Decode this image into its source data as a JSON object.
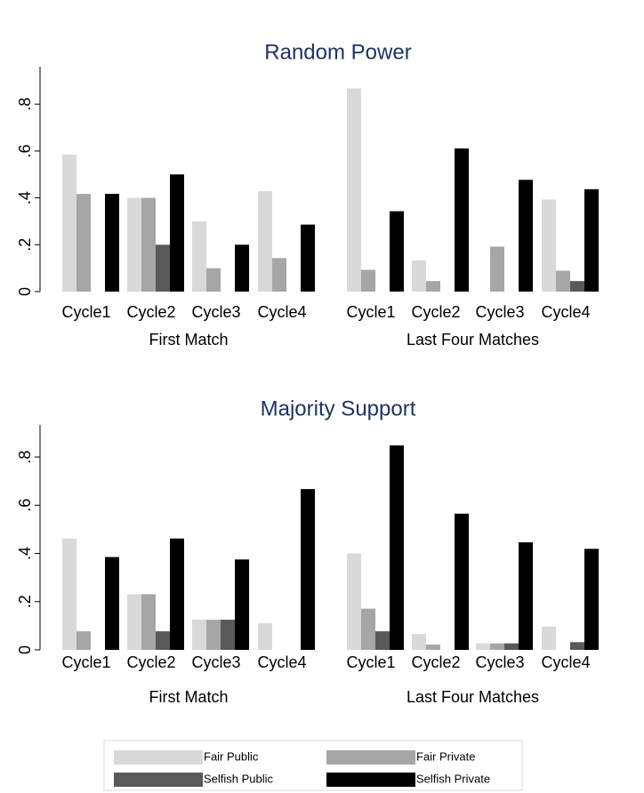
{
  "chart_data": [
    {
      "type": "bar",
      "title": "Random Power",
      "categories": [
        "Cycle1",
        "Cycle2",
        "Cycle3",
        "Cycle4",
        "Cycle1",
        "Cycle2",
        "Cycle3",
        "Cycle4"
      ],
      "groups": [
        "First Match",
        "Last Four Matches"
      ],
      "series": [
        {
          "name": "Fair Public",
          "color": "#d9d9d9",
          "values": [
            0.585,
            0.4,
            0.3,
            0.429,
            0.867,
            0.133,
            0,
            0.393
          ]
        },
        {
          "name": "Fair Private",
          "color": "#a6a6a6",
          "values": [
            0.417,
            0.4,
            0.1,
            0.143,
            0.093,
            0.045,
            0.192,
            0.089
          ]
        },
        {
          "name": "Selfish Public",
          "color": "#595959",
          "values": [
            0,
            0.2,
            0,
            0,
            0,
            0,
            0,
            0.045
          ]
        },
        {
          "name": "Selfish Private",
          "color": "#000000",
          "values": [
            0.417,
            0.5,
            0.2,
            0.286,
            0.343,
            0.611,
            0.477,
            0.437
          ]
        }
      ],
      "ylim": [
        0,
        0.96
      ],
      "yticks": [
        0,
        {
          "value": 0.2,
          "label": ".2"
        },
        {
          "value": 0.4,
          "label": ".4"
        },
        {
          "value": 0.6,
          "label": ".6"
        },
        {
          "value": 0.8,
          "label": ".8"
        }
      ],
      "grid": false
    },
    {
      "type": "bar",
      "title": "Majority Support",
      "categories": [
        "Cycle1",
        "Cycle2",
        "Cycle3",
        "Cycle4",
        "Cycle1",
        "Cycle2",
        "Cycle3",
        "Cycle4"
      ],
      "groups": [
        "First Match",
        "Last Four Matches"
      ],
      "series": [
        {
          "color": "#d9d9d9",
          "values": [
            0.462,
            0.231,
            0.125,
            0.111,
            0.4,
            0.066,
            0.027,
            0.097
          ]
        },
        {
          "color": "#a6a6a6",
          "values": [
            0.077,
            0.231,
            0.125,
            0,
            0.171,
            0.022,
            0.027,
            0
          ]
        },
        {
          "color": "#595959",
          "values": [
            0,
            0.077,
            0.125,
            0,
            0.077,
            0,
            0.027,
            0.032
          ]
        },
        {
          "color": "#000000",
          "values": [
            0.385,
            0.462,
            0.375,
            0.667,
            0.848,
            0.565,
            0.446,
            0.419
          ]
        }
      ],
      "ylim": [
        0,
        0.933
      ],
      "yticks": [
        0,
        {
          "value": 0.2,
          "label": ".2"
        },
        {
          "value": 0.4,
          "label": ".4"
        },
        {
          "value": 0.6,
          "label": ".6"
        },
        {
          "value": 0.8,
          "label": ".8"
        }
      ],
      "grid": false
    }
  ]
}
